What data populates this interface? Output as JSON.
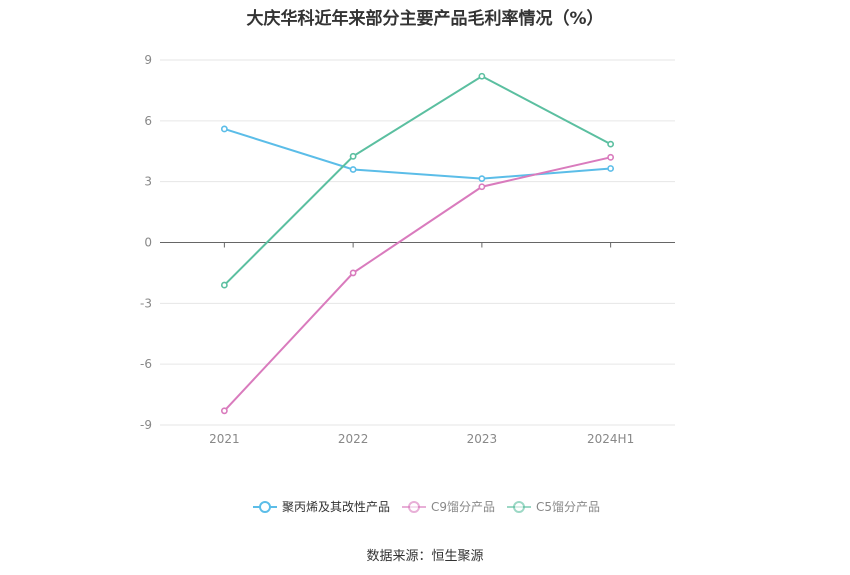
{
  "chart_data": {
    "type": "line",
    "title": "大庆华科近年来部分主要产品毛利率情况（%）",
    "categories": [
      "2021",
      "2022",
      "2023",
      "2024H1"
    ],
    "ylim": [
      -9,
      9
    ],
    "yticks": [
      9,
      6,
      3,
      0,
      -3,
      -6,
      -9
    ],
    "grid": true,
    "legend_position": "bottom",
    "series": [
      {
        "name": "聚丙烯及其改性产品",
        "color": "#5bbde8",
        "values": [
          5.6,
          3.6,
          3.15,
          3.65
        ]
      },
      {
        "name": "C9馏分产品",
        "color": "#d97bbd",
        "values": [
          -8.3,
          -1.5,
          2.75,
          4.2
        ]
      },
      {
        "name": "C5馏分产品",
        "color": "#5bbfa0",
        "values": [
          -2.1,
          4.25,
          8.2,
          4.85
        ]
      }
    ]
  },
  "footer": {
    "source": "数据来源：恒生聚源"
  }
}
